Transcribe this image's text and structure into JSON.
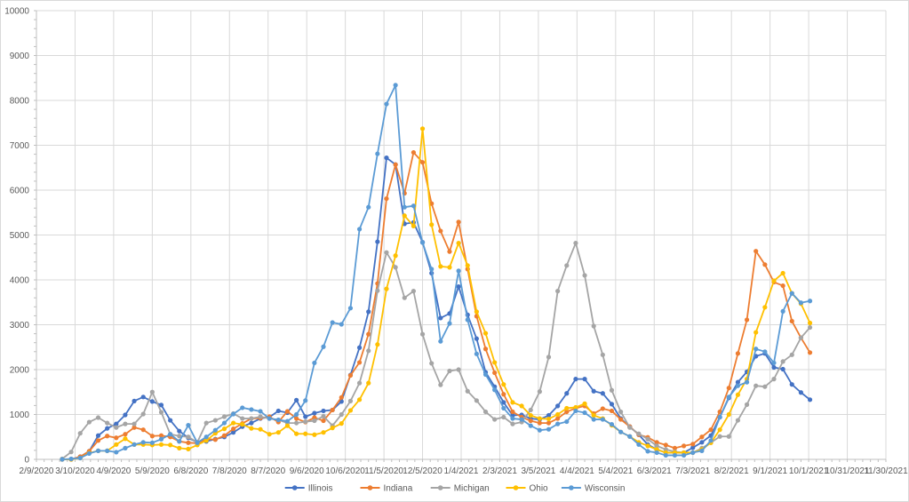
{
  "chart_data": {
    "type": "line",
    "title": "",
    "xlabel": "",
    "ylabel": "",
    "ylim": [
      0,
      10000
    ],
    "y_ticks": [
      "0",
      "1000",
      "2000",
      "3000",
      "4000",
      "5000",
      "6000",
      "7000",
      "8000",
      "9000",
      "10000"
    ],
    "x_range": [
      "2020-02-09",
      "2021-11-30"
    ],
    "x_tick_labels": [
      "2/9/2020",
      "3/10/2020",
      "4/9/2020",
      "5/9/2020",
      "6/8/2020",
      "7/8/2020",
      "8/7/2020",
      "9/6/2020",
      "10/6/2020",
      "11/5/2020",
      "12/5/2020",
      "1/4/2021",
      "2/3/2021",
      "3/5/2021",
      "4/4/2021",
      "5/4/2021",
      "6/3/2021",
      "7/3/2021",
      "8/2/2021",
      "9/1/2021",
      "10/1/2021",
      "10/31/2021",
      "11/30/2021"
    ],
    "x_start": "2020-02-29",
    "x_step_days": 7,
    "grid": true,
    "legend_position": "bottom",
    "series": [
      {
        "name": "Illinois",
        "color": "#4472C4",
        "values": [
          0,
          0,
          60,
          180,
          530,
          690,
          790,
          990,
          1300,
          1390,
          1290,
          1210,
          870,
          630,
          480,
          380,
          400,
          450,
          500,
          600,
          730,
          810,
          910,
          940,
          1080,
          1040,
          1320,
          950,
          1030,
          1080,
          1100,
          1290,
          1880,
          2490,
          3290,
          4850,
          6720,
          6570,
          5250,
          5280,
          4840,
          4150,
          3150,
          3250,
          3850,
          3220,
          2690,
          1940,
          1620,
          1270,
          980,
          990,
          910,
          890,
          980,
          1190,
          1470,
          1790,
          1790,
          1520,
          1470,
          1230,
          910,
          730,
          550,
          330,
          220,
          150,
          150,
          150,
          260,
          380,
          530,
          940,
          1370,
          1720,
          1950,
          2300,
          2360,
          2050,
          2010,
          1670,
          1490,
          1330
        ]
      },
      {
        "name": "Indiana",
        "color": "#ED7D31",
        "values": [
          0,
          0,
          60,
          180,
          420,
          520,
          480,
          560,
          710,
          660,
          520,
          530,
          500,
          400,
          370,
          360,
          450,
          440,
          530,
          680,
          800,
          910,
          920,
          950,
          830,
          1070,
          910,
          830,
          930,
          860,
          1100,
          1380,
          1870,
          2160,
          2790,
          3920,
          5810,
          6570,
          5930,
          6840,
          6620,
          5700,
          5090,
          4630,
          5290,
          4240,
          3190,
          2460,
          1930,
          1450,
          1060,
          940,
          860,
          810,
          810,
          910,
          1060,
          1140,
          1190,
          1020,
          1130,
          1080,
          890,
          730,
          550,
          490,
          380,
          320,
          250,
          300,
          340,
          500,
          660,
          1060,
          1590,
          2360,
          3110,
          4640,
          4340,
          3950,
          3870,
          3080,
          2710,
          2380
        ]
      },
      {
        "name": "Michigan",
        "color": "#A5A5A5",
        "values": [
          10,
          165,
          580,
          830,
          930,
          810,
          710,
          790,
          790,
          1010,
          1500,
          1050,
          560,
          520,
          500,
          380,
          810,
          870,
          950,
          1020,
          910,
          910,
          950,
          910,
          880,
          810,
          810,
          840,
          860,
          960,
          750,
          1000,
          1300,
          1700,
          2420,
          3760,
          4610,
          4280,
          3600,
          3750,
          2790,
          2140,
          1660,
          1970,
          2000,
          1520,
          1310,
          1060,
          890,
          940,
          790,
          830,
          1100,
          1510,
          2280,
          3750,
          4320,
          4820,
          4100,
          2970,
          2330,
          1540,
          1060,
          710,
          570,
          450,
          300,
          220,
          170,
          150,
          150,
          250,
          370,
          510,
          510,
          870,
          1220,
          1640,
          1620,
          1790,
          2180,
          2330,
          2710,
          2940
        ]
      },
      {
        "name": "Ohio",
        "color": "#FFC000",
        "values": [
          0,
          0,
          30,
          140,
          190,
          190,
          330,
          460,
          330,
          330,
          320,
          330,
          320,
          250,
          230,
          320,
          420,
          580,
          680,
          810,
          780,
          690,
          670,
          560,
          600,
          750,
          570,
          570,
          550,
          600,
          700,
          800,
          1090,
          1330,
          1700,
          2560,
          3800,
          4540,
          5430,
          5200,
          7370,
          5230,
          4300,
          4280,
          4820,
          4320,
          3290,
          2810,
          2160,
          1670,
          1270,
          1190,
          980,
          910,
          900,
          1000,
          1140,
          1160,
          1240,
          980,
          910,
          760,
          610,
          510,
          380,
          300,
          220,
          150,
          150,
          150,
          150,
          220,
          370,
          660,
          1000,
          1440,
          1790,
          2830,
          3390,
          3980,
          4150,
          3700,
          3470,
          3040
        ]
      },
      {
        "name": "Wisconsin",
        "color": "#5B9BD5",
        "values": [
          0,
          10,
          30,
          130,
          190,
          190,
          160,
          250,
          330,
          380,
          370,
          450,
          560,
          400,
          760,
          370,
          500,
          650,
          810,
          1010,
          1150,
          1110,
          1070,
          910,
          880,
          850,
          1000,
          1310,
          2150,
          2510,
          3050,
          3010,
          3370,
          5130,
          5620,
          6810,
          7920,
          8340,
          5620,
          5650,
          4830,
          4240,
          2630,
          3030,
          4200,
          3110,
          2350,
          1890,
          1550,
          1140,
          910,
          890,
          750,
          650,
          670,
          790,
          840,
          1080,
          1040,
          890,
          890,
          780,
          610,
          510,
          330,
          180,
          150,
          90,
          90,
          90,
          150,
          190,
          420,
          940,
          1390,
          1640,
          1720,
          2460,
          2400,
          2150,
          3300,
          3700,
          3490,
          3530
        ]
      }
    ]
  }
}
